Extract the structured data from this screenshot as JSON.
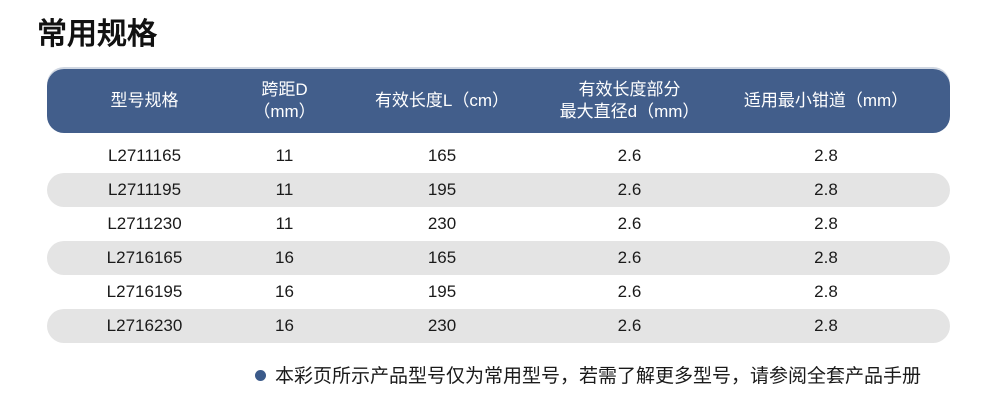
{
  "page": {
    "title": "常用规格",
    "background": "#ffffff"
  },
  "table": {
    "header_bg": "#425e8b",
    "header_text_color": "#ffffff",
    "alt_row_bg": "#e4e4e4",
    "columns": [
      "型号规格",
      "跨距D（mm）",
      "有效长度L（cm）",
      "有效长度部分\n最大直径d（mm）",
      "适用最小钳道（mm）"
    ],
    "rows": [
      [
        "L2711165",
        "11",
        "165",
        "2.6",
        "2.8"
      ],
      [
        "L2711195",
        "11",
        "195",
        "2.6",
        "2.8"
      ],
      [
        "L2711230",
        "11",
        "230",
        "2.6",
        "2.8"
      ],
      [
        "L2716165",
        "16",
        "165",
        "2.6",
        "2.8"
      ],
      [
        "L2716195",
        "16",
        "195",
        "2.6",
        "2.8"
      ],
      [
        "L2716230",
        "16",
        "230",
        "2.6",
        "2.8"
      ]
    ]
  },
  "note": {
    "bullet_color": "#3b5a8a",
    "text": "本彩页所示产品型号仅为常用型号，若需了解更多型号，请参阅全套产品手册"
  }
}
